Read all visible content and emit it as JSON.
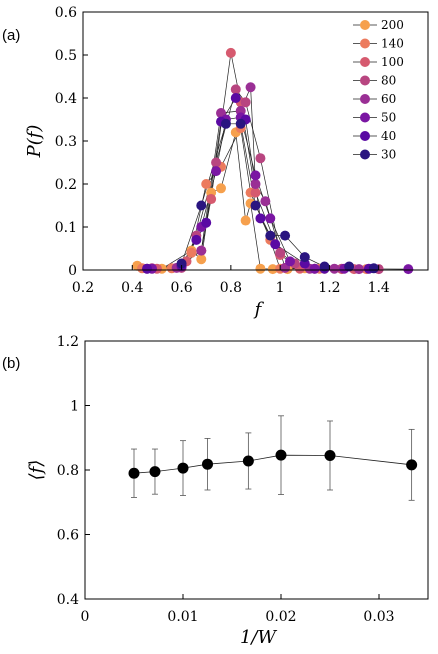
{
  "chart_data": [
    {
      "id": "a",
      "type": "line",
      "panel_label": "(a)",
      "xlabel": "f",
      "ylabel": "P(f)",
      "xlim": [
        0.2,
        1.6
      ],
      "ylim": [
        0,
        0.6
      ],
      "xticks": [
        "0.2",
        "0.4",
        "0.6",
        "0.8",
        "1",
        "1.2",
        "1.4"
      ],
      "xtick_values": [
        0.2,
        0.4,
        0.6,
        0.8,
        1.0,
        1.2,
        1.4
      ],
      "yticks": [
        "0",
        "0.1",
        "0.2",
        "0.3",
        "0.4",
        "0.5",
        "0.6"
      ],
      "ytick_values": [
        0,
        0.1,
        0.2,
        0.3,
        0.4,
        0.5,
        0.6
      ],
      "legend_position": "top-right",
      "series": [
        {
          "name": "200",
          "color": "#f6a04d",
          "points": [
            [
              0.42,
              0.01
            ],
            [
              0.52,
              0.003
            ],
            [
              0.64,
              0.045
            ],
            [
              0.68,
              0.025
            ],
            [
              0.72,
              0.18
            ],
            [
              0.76,
              0.19
            ],
            [
              0.82,
              0.32
            ],
            [
              0.86,
              0.115
            ],
            [
              0.88,
              0.155
            ],
            [
              0.92,
              0.003
            ],
            [
              0.97,
              0.002
            ],
            [
              1.03,
              0.002
            ],
            [
              1.1,
              0.004
            ],
            [
              1.18,
              0.003
            ]
          ]
        },
        {
          "name": "140",
          "color": "#ec7b5e",
          "points": [
            [
              0.44,
              0.004
            ],
            [
              0.56,
              0.004
            ],
            [
              0.64,
              0.04
            ],
            [
              0.7,
              0.2
            ],
            [
              0.76,
              0.24
            ],
            [
              0.84,
              0.33
            ],
            [
              0.88,
              0.18
            ],
            [
              0.96,
              0.07
            ],
            [
              1.0,
              0.003
            ],
            [
              1.08,
              0.003
            ],
            [
              1.16,
              0.003
            ],
            [
              1.25,
              0.002
            ],
            [
              1.35,
              0.002
            ]
          ]
        },
        {
          "name": "100",
          "color": "#d65a6f",
          "points": [
            [
              0.5,
              0.003
            ],
            [
              0.62,
              0.02
            ],
            [
              0.68,
              0.045
            ],
            [
              0.72,
              0.165
            ],
            [
              0.8,
              0.505
            ],
            [
              0.84,
              0.39
            ],
            [
              0.9,
              0.18
            ],
            [
              1.0,
              0.035
            ],
            [
              1.08,
              0.004
            ],
            [
              1.18,
              0.004
            ],
            [
              1.3,
              0.002
            ]
          ]
        },
        {
          "name": "80",
          "color": "#b84580",
          "points": [
            [
              0.48,
              0.004
            ],
            [
              0.6,
              0.005
            ],
            [
              0.66,
              0.08
            ],
            [
              0.74,
              0.25
            ],
            [
              0.82,
              0.42
            ],
            [
              0.86,
              0.39
            ],
            [
              0.92,
              0.26
            ],
            [
              1.0,
              0.04
            ],
            [
              1.06,
              0.015
            ],
            [
              1.14,
              0.003
            ],
            [
              1.25,
              0.003
            ],
            [
              1.4,
              0.002
            ]
          ]
        },
        {
          "name": "60",
          "color": "#9a2f95",
          "points": [
            [
              0.46,
              0.003
            ],
            [
              0.58,
              0.005
            ],
            [
              0.68,
              0.045
            ],
            [
              0.76,
              0.365
            ],
            [
              0.84,
              0.37
            ],
            [
              0.88,
              0.425
            ],
            [
              0.9,
              0.2
            ],
            [
              0.94,
              0.16
            ],
            [
              1.02,
              0.005
            ],
            [
              1.12,
              0.003
            ],
            [
              1.22,
              0.003
            ],
            [
              1.32,
              0.002
            ]
          ]
        },
        {
          "name": "50",
          "color": "#7a16a3",
          "points": [
            [
              0.48,
              0.003
            ],
            [
              0.6,
              0.008
            ],
            [
              0.68,
              0.1
            ],
            [
              0.74,
              0.23
            ],
            [
              0.78,
              0.35
            ],
            [
              0.84,
              0.355
            ],
            [
              0.9,
              0.22
            ],
            [
              0.96,
              0.12
            ],
            [
              1.04,
              0.02
            ],
            [
              1.14,
              0.003
            ],
            [
              1.26,
              0.003
            ],
            [
              1.52,
              0.002
            ]
          ]
        },
        {
          "name": "40",
          "color": "#5a0aa3",
          "points": [
            [
              0.46,
              0.003
            ],
            [
              0.6,
              0.01
            ],
            [
              0.66,
              0.07
            ],
            [
              0.7,
              0.11
            ],
            [
              0.76,
              0.345
            ],
            [
              0.82,
              0.4
            ],
            [
              0.86,
              0.35
            ],
            [
              0.92,
              0.12
            ],
            [
              0.98,
              0.06
            ],
            [
              1.1,
              0.015
            ],
            [
              1.18,
              0.003
            ],
            [
              1.36,
              0.003
            ]
          ]
        },
        {
          "name": "30",
          "color": "#2a1580",
          "points": [
            [
              0.6,
              0.015
            ],
            [
              0.68,
              0.15
            ],
            [
              0.78,
              0.34
            ],
            [
              0.84,
              0.34
            ],
            [
              0.9,
              0.15
            ],
            [
              0.96,
              0.08
            ],
            [
              1.02,
              0.08
            ],
            [
              1.1,
              0.03
            ],
            [
              1.18,
              0.008
            ],
            [
              1.28,
              0.008
            ],
            [
              1.38,
              0.004
            ]
          ]
        }
      ]
    },
    {
      "id": "b",
      "type": "scatter",
      "panel_label": "(b)",
      "xlabel": "1/W",
      "ylabel": "⟨f⟩",
      "xlim": [
        0,
        0.035
      ],
      "ylim": [
        0.4,
        1.2
      ],
      "xticks": [
        "0",
        "0.01",
        "0.02",
        "0.03"
      ],
      "xtick_values": [
        0,
        0.01,
        0.02,
        0.03
      ],
      "yticks": [
        "0.4",
        "0.6",
        "0.8",
        "1",
        "1.2"
      ],
      "ytick_values": [
        0.4,
        0.6,
        0.8,
        1.0,
        1.2
      ],
      "grid": false,
      "series": [
        {
          "color": "#000000",
          "x": [
            0.005,
            0.00714,
            0.01,
            0.0125,
            0.01667,
            0.02,
            0.025,
            0.03333
          ],
          "y": [
            0.79,
            0.795,
            0.806,
            0.818,
            0.828,
            0.846,
            0.845,
            0.816
          ],
          "error": [
            0.075,
            0.07,
            0.085,
            0.08,
            0.087,
            0.122,
            0.107,
            0.11
          ]
        }
      ]
    }
  ]
}
